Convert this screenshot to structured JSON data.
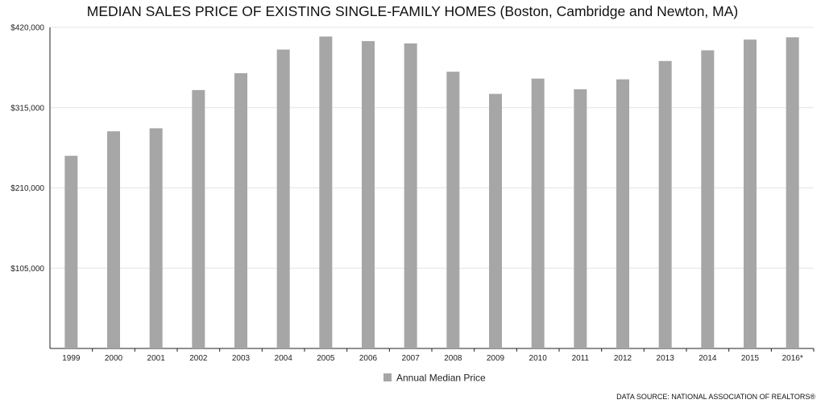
{
  "chart_data": {
    "type": "bar",
    "title": "MEDIAN SALES PRICE OF EXISTING SINGLE-FAMILY HOMES (Boston, Cambridge and Newton, MA)",
    "xlabel": "",
    "ylabel": "",
    "categories": [
      "1999",
      "2000",
      "2001",
      "2002",
      "2003",
      "2004",
      "2005",
      "2006",
      "2007",
      "2008",
      "2009",
      "2010",
      "2011",
      "2012",
      "2013",
      "2014",
      "2015",
      "2016*"
    ],
    "series": [
      {
        "name": "Annual Median Price",
        "color": "#a6a6a6",
        "values": [
          252000,
          284000,
          288000,
          338000,
          360000,
          391000,
          408000,
          402000,
          399000,
          362000,
          333000,
          353000,
          339000,
          352000,
          376000,
          390000,
          404000,
          407000
        ]
      }
    ],
    "ylim": [
      0,
      420000
    ],
    "yticks": [
      105000,
      210000,
      315000,
      420000
    ],
    "ytick_labels": [
      "$105,000",
      "$210,000",
      "$315,000",
      "$420,000"
    ],
    "grid": true,
    "legend_position": "bottom-center"
  },
  "source_note": "DATA SOURCE: NATIONAL ASSOCIATION OF REALTORS®"
}
